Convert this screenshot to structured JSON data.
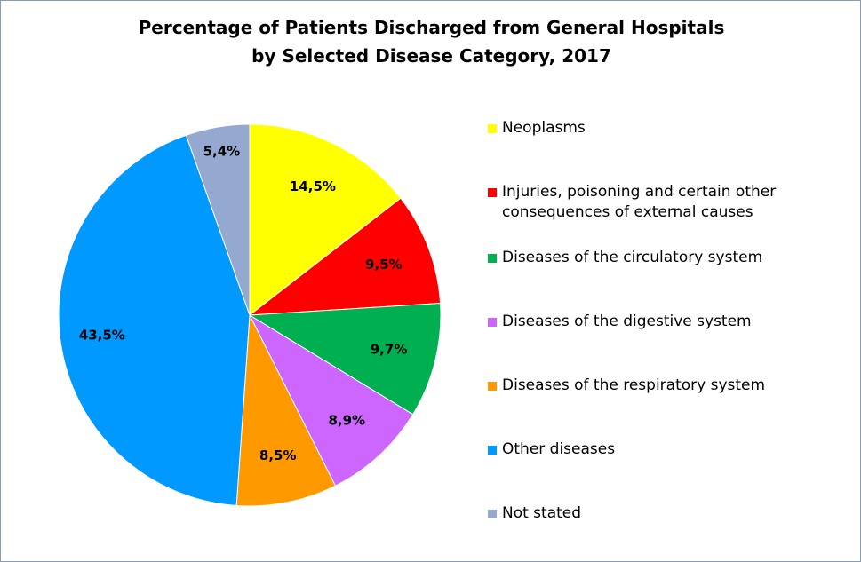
{
  "chart_data": {
    "type": "pie",
    "title_line1": "Percentage of Patients Discharged from General Hospitals",
    "title_line2": "by Selected Disease Category, 2017",
    "legend_position": "right",
    "slices": [
      {
        "name": "Neoplasms",
        "value": 14.5,
        "label": "14,5%",
        "color": "#FFFF00"
      },
      {
        "name": "Injuries, poisoning and certain other consequences of external causes",
        "value": 9.5,
        "label": "9,5%",
        "color": "#FF0000"
      },
      {
        "name": "Diseases of the circulatory system",
        "value": 9.7,
        "label": "9,7%",
        "color": "#00B050"
      },
      {
        "name": "Diseases of the digestive system",
        "value": 8.9,
        "label": "8,9%",
        "color": "#CC66FF"
      },
      {
        "name": "Diseases of the respiratory system",
        "value": 8.5,
        "label": "8,5%",
        "color": "#FF9900"
      },
      {
        "name": "Other diseases",
        "value": 43.5,
        "label": "43,5%",
        "color": "#0099FF"
      },
      {
        "name": "Not stated",
        "value": 5.4,
        "label": "5,4%",
        "color": "#95A8D0"
      }
    ]
  }
}
